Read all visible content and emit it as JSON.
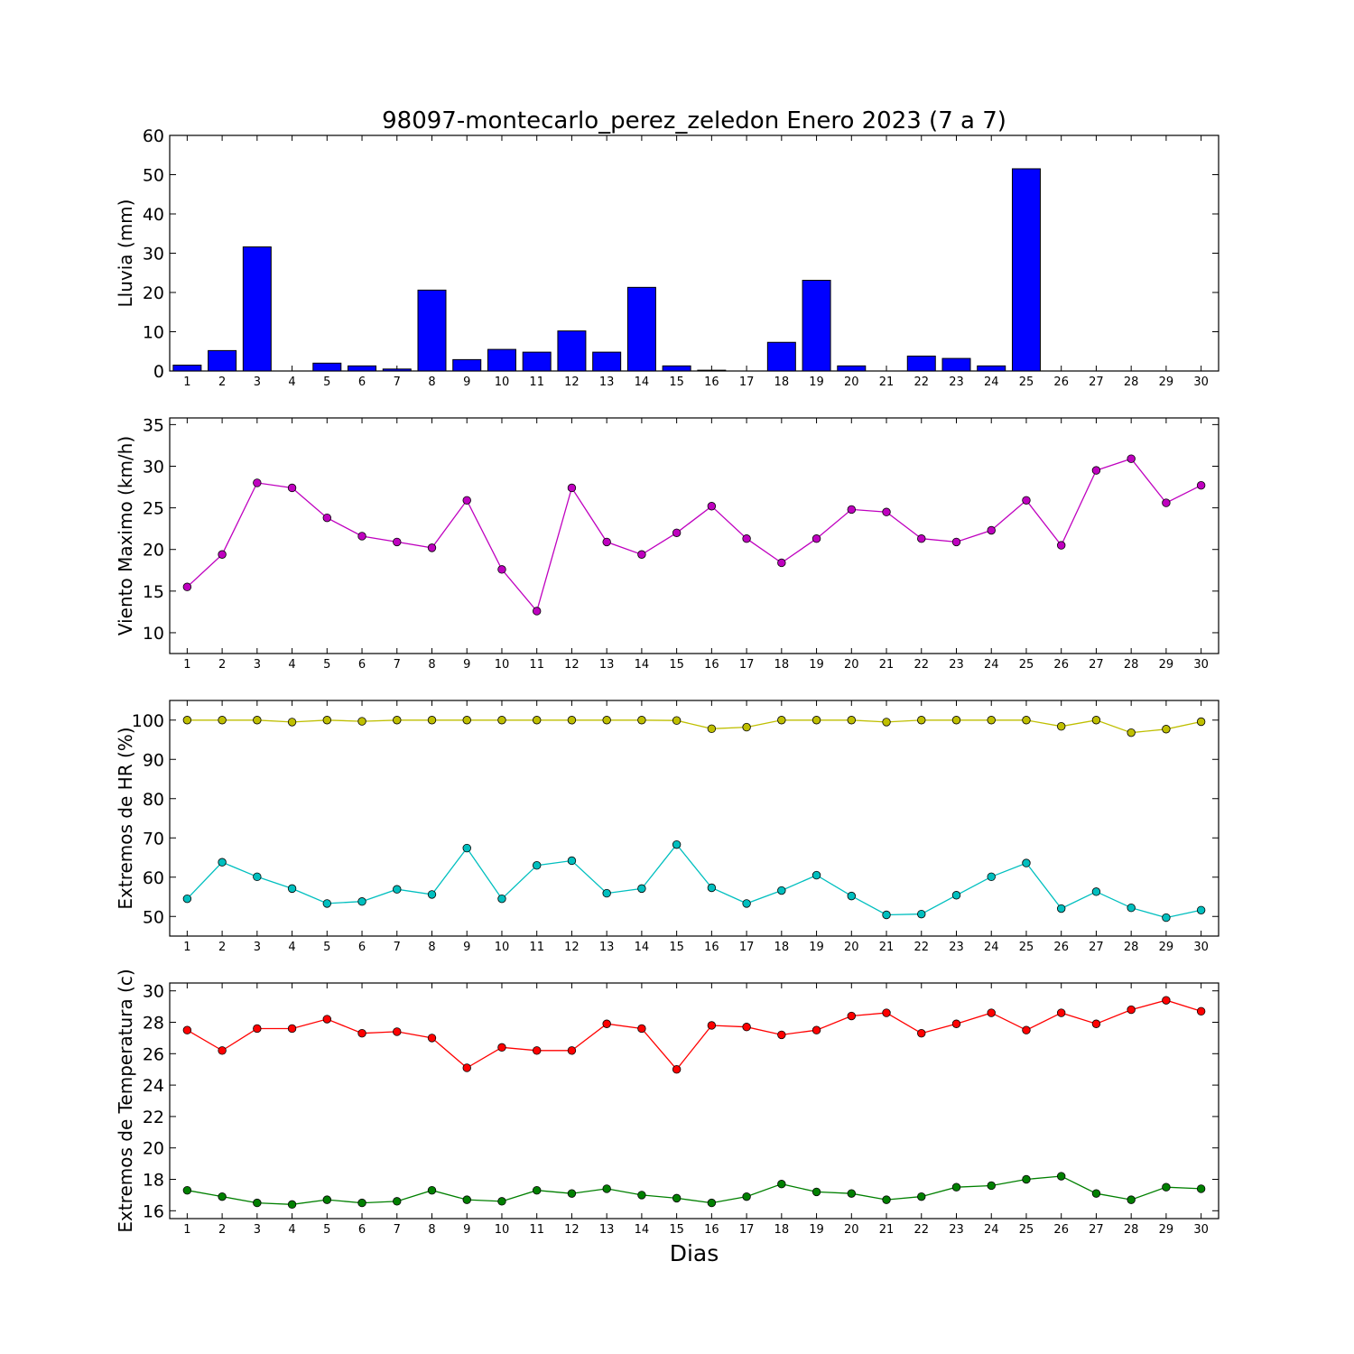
{
  "title": "98097-montecarlo_perez_zeledon Enero 2023  (7 a 7)",
  "xlabel": "Dias",
  "chart_data": [
    {
      "type": "bar",
      "ylabel": "Lluvia (mm)",
      "ylim": [
        0,
        60
      ],
      "yticks": [
        0,
        10,
        20,
        30,
        40,
        50,
        60
      ],
      "categories": [
        1,
        2,
        3,
        4,
        5,
        6,
        7,
        8,
        9,
        10,
        11,
        12,
        13,
        14,
        15,
        16,
        17,
        18,
        19,
        20,
        21,
        22,
        23,
        24,
        25,
        26,
        27,
        28,
        29,
        30
      ],
      "series": [
        {
          "color": "#0000ff",
          "values": [
            1.5,
            5.2,
            31.6,
            0,
            2.0,
            1.3,
            0.5,
            20.6,
            2.9,
            5.5,
            4.8,
            10.2,
            4.8,
            21.3,
            1.3,
            0.2,
            0,
            7.3,
            23.1,
            1.3,
            0,
            3.8,
            3.2,
            1.3,
            51.5,
            0,
            0,
            0,
            0,
            0
          ]
        }
      ]
    },
    {
      "type": "line",
      "ylabel": "Viento Maximo (km/h)",
      "ylim": [
        7.5,
        35.8
      ],
      "yticks": [
        10,
        15,
        20,
        25,
        30,
        35
      ],
      "x": [
        1,
        2,
        3,
        4,
        5,
        6,
        7,
        8,
        9,
        10,
        11,
        12,
        13,
        14,
        15,
        16,
        17,
        18,
        19,
        20,
        21,
        22,
        23,
        24,
        25,
        26,
        27,
        28,
        29,
        30
      ],
      "series": [
        {
          "color": "#bf00bf",
          "values": [
            15.5,
            19.4,
            28.0,
            27.4,
            23.8,
            21.6,
            20.9,
            20.2,
            25.9,
            17.6,
            12.6,
            27.4,
            20.9,
            19.4,
            22.0,
            25.2,
            21.3,
            18.4,
            21.3,
            24.8,
            24.5,
            21.3,
            20.9,
            22.3,
            25.9,
            20.5,
            29.5,
            30.9,
            25.6,
            27.7
          ]
        }
      ]
    },
    {
      "type": "line",
      "ylabel": "Extremos de HR (%)",
      "ylim": [
        45,
        105
      ],
      "yticks": [
        50,
        60,
        70,
        80,
        90,
        100
      ],
      "x": [
        1,
        2,
        3,
        4,
        5,
        6,
        7,
        8,
        9,
        10,
        11,
        12,
        13,
        14,
        15,
        16,
        17,
        18,
        19,
        20,
        21,
        22,
        23,
        24,
        25,
        26,
        27,
        28,
        29,
        30
      ],
      "series": [
        {
          "color": "#bfbf00",
          "values": [
            100,
            100,
            100,
            99.5,
            100,
            99.7,
            100,
            100,
            100,
            100,
            100,
            100,
            100,
            100,
            99.9,
            97.8,
            98.2,
            100,
            100,
            100,
            99.5,
            100,
            100,
            100,
            100,
            98.4,
            100,
            96.8,
            97.7,
            99.6
          ]
        },
        {
          "color": "#00bfbf",
          "values": [
            54.5,
            63.8,
            60.1,
            57.1,
            53.3,
            53.8,
            56.9,
            55.6,
            67.4,
            54.5,
            63.0,
            64.2,
            55.9,
            57.1,
            68.3,
            57.3,
            53.3,
            56.6,
            60.5,
            55.2,
            50.4,
            50.6,
            55.4,
            60.1,
            63.6,
            52.0,
            56.3,
            52.2,
            49.7,
            51.6
          ]
        }
      ]
    },
    {
      "type": "line",
      "ylabel": "Extremos de Temperatura (c)",
      "ylim": [
        15.5,
        30.5
      ],
      "yticks": [
        16,
        18,
        20,
        22,
        24,
        26,
        28,
        30
      ],
      "x": [
        1,
        2,
        3,
        4,
        5,
        6,
        7,
        8,
        9,
        10,
        11,
        12,
        13,
        14,
        15,
        16,
        17,
        18,
        19,
        20,
        21,
        22,
        23,
        24,
        25,
        26,
        27,
        28,
        29,
        30
      ],
      "series": [
        {
          "color": "#ff0000",
          "values": [
            27.5,
            26.2,
            27.6,
            27.6,
            28.2,
            27.3,
            27.4,
            27.0,
            25.1,
            26.4,
            26.2,
            26.2,
            27.9,
            27.6,
            25.0,
            27.8,
            27.7,
            27.2,
            27.5,
            28.4,
            28.6,
            27.3,
            27.9,
            28.6,
            27.5,
            28.6,
            27.9,
            28.8,
            29.4,
            28.7
          ]
        },
        {
          "color": "#008000",
          "values": [
            17.3,
            16.9,
            16.5,
            16.4,
            16.7,
            16.5,
            16.6,
            17.3,
            16.7,
            16.6,
            17.3,
            17.1,
            17.4,
            17.0,
            16.8,
            16.5,
            16.9,
            17.7,
            17.2,
            17.1,
            16.7,
            16.9,
            17.5,
            17.6,
            18.0,
            18.2,
            17.1,
            16.7,
            17.5,
            17.4
          ]
        }
      ]
    }
  ]
}
